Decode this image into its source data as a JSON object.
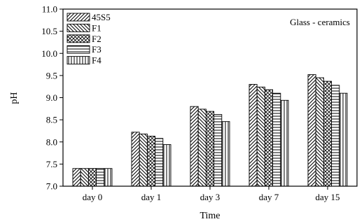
{
  "chart_data": {
    "type": "bar",
    "title": "",
    "xlabel": "Time",
    "ylabel": "pH",
    "annotation": "Glass - ceramics",
    "categories": [
      "day 0",
      "day 1",
      "day 3",
      "day 7",
      "day 15"
    ],
    "ylim": [
      7.0,
      11.0
    ],
    "yticks": [
      7.0,
      7.5,
      8.0,
      8.5,
      9.0,
      9.5,
      10.0,
      10.5,
      11.0
    ],
    "grid": false,
    "legend_position": "top-left",
    "series": [
      {
        "name": "45S5",
        "pattern": "diagonal-right",
        "values": [
          7.4,
          8.22,
          8.8,
          9.3,
          9.52
        ]
      },
      {
        "name": "F1",
        "pattern": "diagonal-left",
        "values": [
          7.4,
          8.18,
          8.74,
          9.24,
          9.45
        ]
      },
      {
        "name": "F2",
        "pattern": "crosshatch",
        "values": [
          7.4,
          8.13,
          8.69,
          9.18,
          9.37
        ]
      },
      {
        "name": "F3",
        "pattern": "horizontal",
        "values": [
          7.4,
          8.08,
          8.62,
          9.1,
          9.28
        ]
      },
      {
        "name": "F4",
        "pattern": "vertical",
        "values": [
          7.4,
          7.94,
          8.46,
          8.94,
          9.1
        ]
      }
    ],
    "colors": {
      "stroke": "#000000",
      "fill": "#ffffff"
    }
  }
}
